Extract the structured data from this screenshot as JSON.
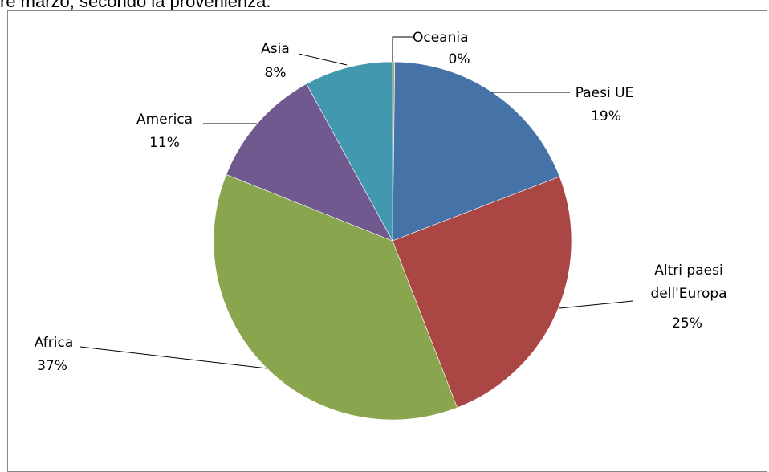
{
  "caption": "re marzo, secondo la provenienza.",
  "chart_data": {
    "type": "pie",
    "title": "",
    "slices": [
      {
        "label": "Oceania",
        "value_label": "0%",
        "value": 0.2,
        "color": "#C6A15B"
      },
      {
        "label": "Paesi UE",
        "value_label": "19%",
        "value": 19,
        "color": "#4572A7"
      },
      {
        "label": "Altri paesi dell'Europa",
        "value_label": "25%",
        "value": 25,
        "color": "#AA4643"
      },
      {
        "label": "Africa",
        "value_label": "37%",
        "value": 37,
        "color": "#89A54E"
      },
      {
        "label": "America",
        "value_label": "11%",
        "value": 11,
        "color": "#71588F"
      },
      {
        "label": "Asia",
        "value_label": "8%",
        "value": 8,
        "color": "#4198AF"
      }
    ],
    "start_angle": "top",
    "direction": "clockwise",
    "legend": "none"
  }
}
